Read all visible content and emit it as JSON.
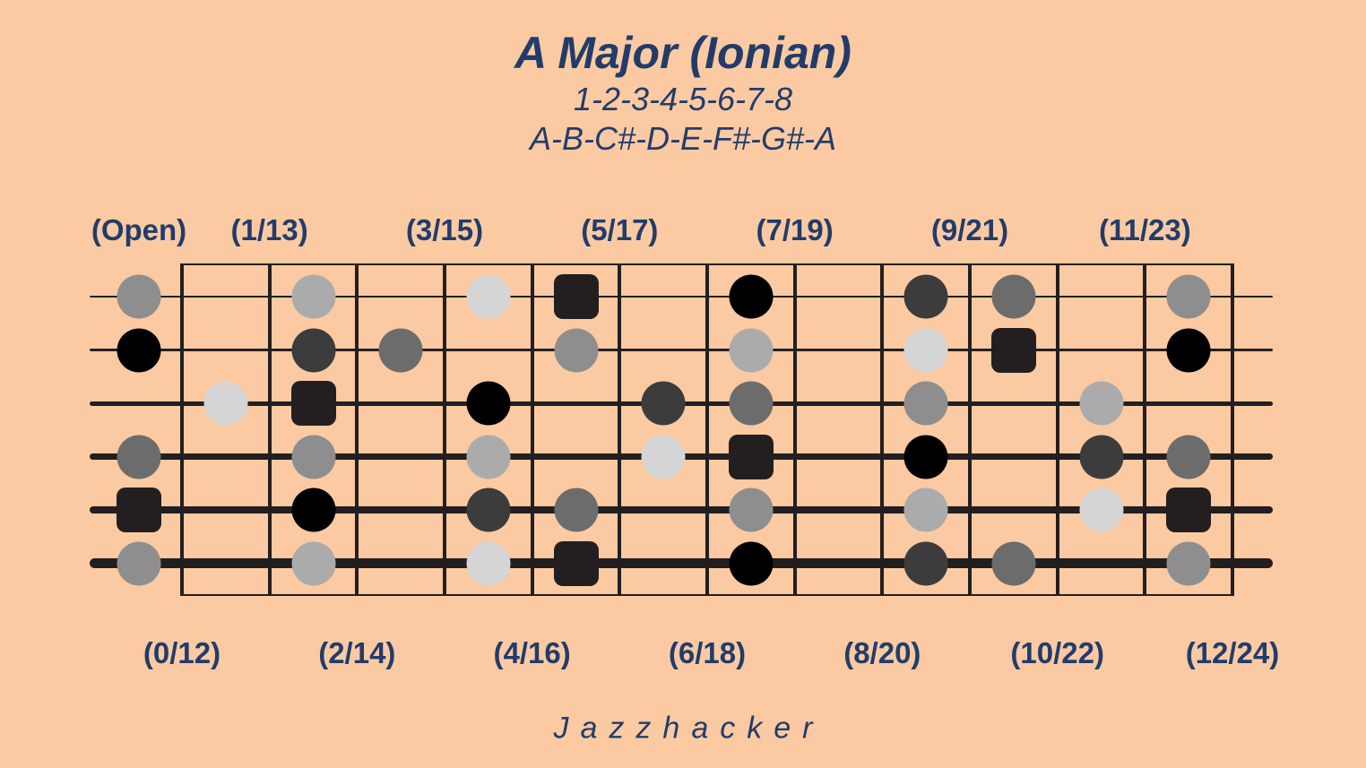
{
  "header": {
    "title": "A Major (Ionian)",
    "degrees": "1-2-3-4-5-6-7-8",
    "notes": "A-B-C#-D-E-F#-G#-A"
  },
  "footer": {
    "brand": "Jazzhacker"
  },
  "fret_labels_top": [
    "(Open)",
    "(1/13)",
    "(3/15)",
    "(5/17)",
    "(7/19)",
    "(9/21)",
    "(11/23)"
  ],
  "fret_labels_bottom": [
    "(0/12)",
    "(2/14)",
    "(4/16)",
    "(6/18)",
    "(8/20)",
    "(10/22)",
    "(12/24)"
  ],
  "colors": {
    "background": "#FBCAA2",
    "text": "#223C6A",
    "line": "#231F20",
    "root_square": "#231F20",
    "degree_colors": {
      "1": "#231F20",
      "2": "#000000",
      "3": "#3C3C3C",
      "4": "#6C6C6C",
      "5": "#8E8E8E",
      "6": "#ABABAB",
      "7": "#D5D5D5"
    }
  },
  "fretboard": {
    "num_frets": 12,
    "root_note": "A",
    "root_shape": "square",
    "strings": [
      {
        "string": 1,
        "tuning": "E",
        "dots": [
          {
            "fret": 0,
            "note": "E",
            "degree": 5
          },
          {
            "fret": 2,
            "note": "F#",
            "degree": 6
          },
          {
            "fret": 4,
            "note": "G#",
            "degree": 7
          },
          {
            "fret": 5,
            "note": "A",
            "degree": 1
          },
          {
            "fret": 7,
            "note": "B",
            "degree": 2
          },
          {
            "fret": 9,
            "note": "C#",
            "degree": 3
          },
          {
            "fret": 10,
            "note": "D",
            "degree": 4
          },
          {
            "fret": 12,
            "note": "E",
            "degree": 5
          }
        ]
      },
      {
        "string": 2,
        "tuning": "B",
        "dots": [
          {
            "fret": 0,
            "note": "B",
            "degree": 2
          },
          {
            "fret": 2,
            "note": "C#",
            "degree": 3
          },
          {
            "fret": 3,
            "note": "D",
            "degree": 4
          },
          {
            "fret": 5,
            "note": "E",
            "degree": 5
          },
          {
            "fret": 7,
            "note": "F#",
            "degree": 6
          },
          {
            "fret": 9,
            "note": "G#",
            "degree": 7
          },
          {
            "fret": 10,
            "note": "A",
            "degree": 1
          },
          {
            "fret": 12,
            "note": "B",
            "degree": 2
          }
        ]
      },
      {
        "string": 3,
        "tuning": "G",
        "dots": [
          {
            "fret": 1,
            "note": "G#",
            "degree": 7
          },
          {
            "fret": 2,
            "note": "A",
            "degree": 1
          },
          {
            "fret": 4,
            "note": "B",
            "degree": 2
          },
          {
            "fret": 6,
            "note": "C#",
            "degree": 3
          },
          {
            "fret": 7,
            "note": "D",
            "degree": 4
          },
          {
            "fret": 9,
            "note": "E",
            "degree": 5
          },
          {
            "fret": 11,
            "note": "F#",
            "degree": 6
          }
        ]
      },
      {
        "string": 4,
        "tuning": "D",
        "dots": [
          {
            "fret": 0,
            "note": "D",
            "degree": 4
          },
          {
            "fret": 2,
            "note": "E",
            "degree": 5
          },
          {
            "fret": 4,
            "note": "F#",
            "degree": 6
          },
          {
            "fret": 6,
            "note": "G#",
            "degree": 7
          },
          {
            "fret": 7,
            "note": "A",
            "degree": 1
          },
          {
            "fret": 9,
            "note": "B",
            "degree": 2
          },
          {
            "fret": 11,
            "note": "C#",
            "degree": 3
          },
          {
            "fret": 12,
            "note": "D",
            "degree": 4
          }
        ]
      },
      {
        "string": 5,
        "tuning": "A",
        "dots": [
          {
            "fret": 0,
            "note": "A",
            "degree": 1
          },
          {
            "fret": 2,
            "note": "B",
            "degree": 2
          },
          {
            "fret": 4,
            "note": "C#",
            "degree": 3
          },
          {
            "fret": 5,
            "note": "D",
            "degree": 4
          },
          {
            "fret": 7,
            "note": "E",
            "degree": 5
          },
          {
            "fret": 9,
            "note": "F#",
            "degree": 6
          },
          {
            "fret": 11,
            "note": "G#",
            "degree": 7
          },
          {
            "fret": 12,
            "note": "A",
            "degree": 1
          }
        ]
      },
      {
        "string": 6,
        "tuning": "E",
        "dots": [
          {
            "fret": 0,
            "note": "E",
            "degree": 5
          },
          {
            "fret": 2,
            "note": "F#",
            "degree": 6
          },
          {
            "fret": 4,
            "note": "G#",
            "degree": 7
          },
          {
            "fret": 5,
            "note": "A",
            "degree": 1
          },
          {
            "fret": 7,
            "note": "B",
            "degree": 2
          },
          {
            "fret": 9,
            "note": "C#",
            "degree": 3
          },
          {
            "fret": 10,
            "note": "D",
            "degree": 4
          },
          {
            "fret": 12,
            "note": "E",
            "degree": 5
          }
        ]
      }
    ]
  }
}
